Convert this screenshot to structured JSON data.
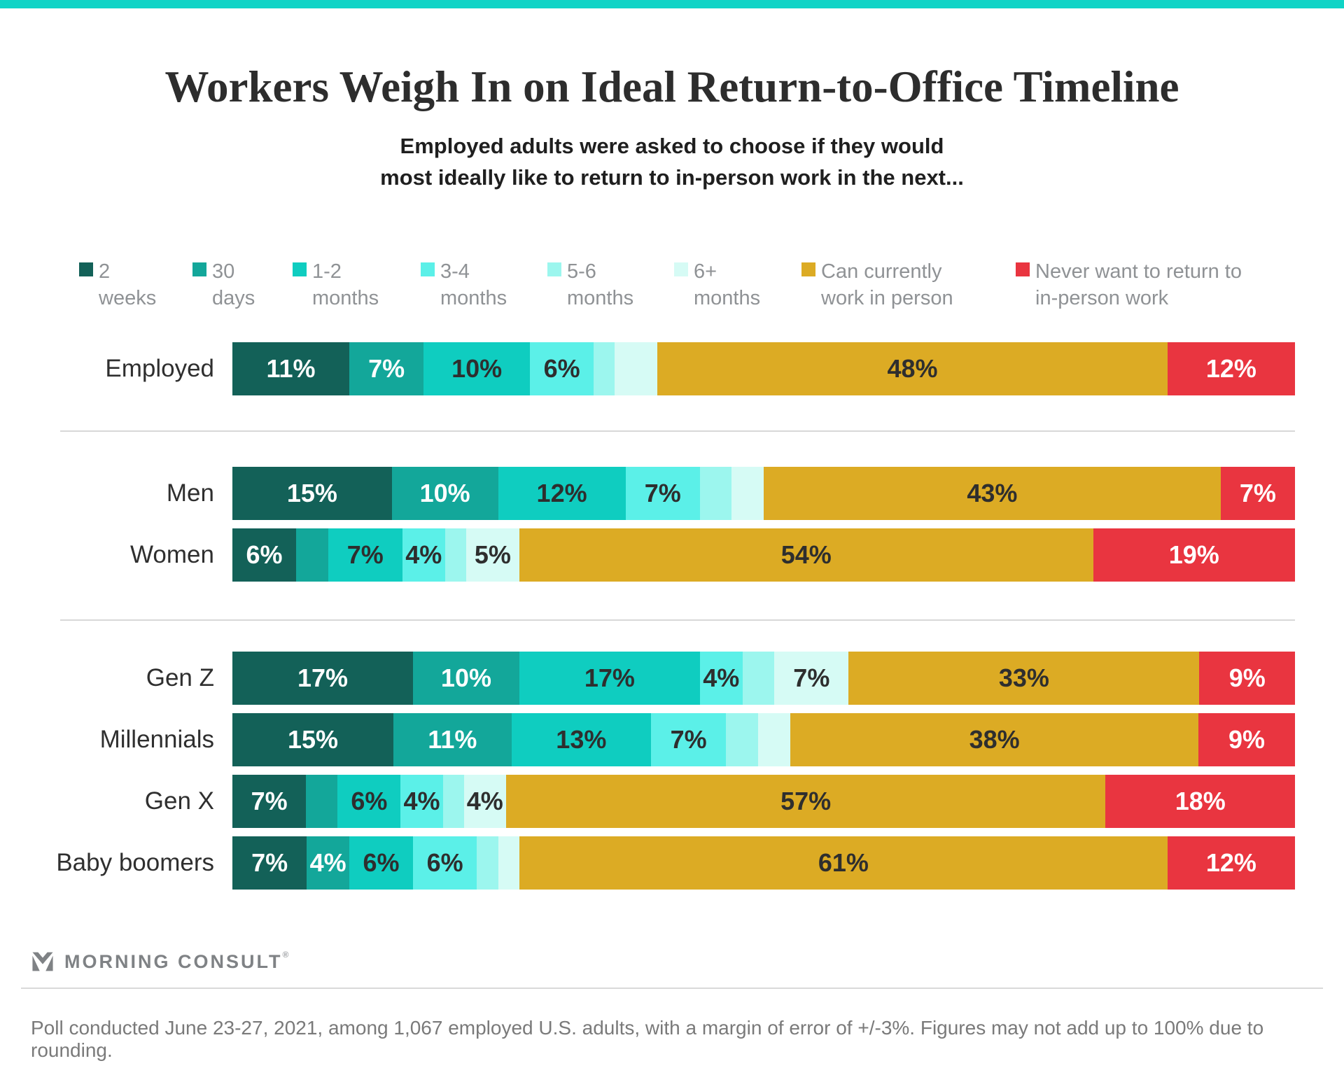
{
  "header": {
    "title": "Workers Weigh In on Ideal Return-to-Office Timeline",
    "subtitle_lines": [
      "Employed adults were asked to choose if they would",
      "most ideally like to return to in-person work in the next..."
    ]
  },
  "colors": {
    "topbar": "#10d4c6",
    "divider": "#d8d8d8",
    "legend_text": "#8f9295",
    "segment_palette": [
      "#136158",
      "#13a79a",
      "#0fcdc0",
      "#5bf0e8",
      "#9cf6ee",
      "#d6fbf5",
      "#dcab24",
      "#e93540"
    ],
    "label_on_dark": "#ffffff",
    "label_on_light": "#2e2e2e"
  },
  "chart_data": {
    "type": "bar",
    "orientation": "horizontal-stacked",
    "unit": "%",
    "xlim": [
      0,
      100
    ],
    "legend_position": "top",
    "grid": false,
    "categories": [
      "2 weeks",
      "30 days",
      "1-2 months",
      "3-4 months",
      "5-6 months",
      "6+ months",
      "Can currently work in person",
      "Never want to return to in-person work"
    ],
    "light_text_segment_indexes": [
      0,
      1,
      7
    ],
    "rows": [
      {
        "label": "Employed",
        "group": 1,
        "values": [
          11,
          7,
          10,
          6,
          2,
          4,
          48,
          12
        ],
        "display_labels": [
          "11%",
          "7%",
          "10%",
          "6%",
          "",
          "",
          "48%",
          "12%"
        ]
      },
      {
        "label": "Men",
        "group": 2,
        "values": [
          15,
          10,
          12,
          7,
          3,
          3,
          43,
          7
        ],
        "display_labels": [
          "15%",
          "10%",
          "12%",
          "7%",
          "",
          "",
          "43%",
          "7%"
        ]
      },
      {
        "label": "Women",
        "group": 2,
        "values": [
          6,
          3,
          7,
          4,
          2,
          5,
          54,
          19
        ],
        "display_labels": [
          "6%",
          "",
          "7%",
          "4%",
          "",
          "5%",
          "54%",
          "19%"
        ]
      },
      {
        "label": "Gen Z",
        "group": 3,
        "values": [
          17,
          10,
          17,
          4,
          3,
          7,
          33,
          9
        ],
        "display_labels": [
          "17%",
          "10%",
          "17%",
          "4%",
          "",
          "7%",
          "33%",
          "9%"
        ]
      },
      {
        "label": "Millennials",
        "group": 3,
        "values": [
          15,
          11,
          13,
          7,
          3,
          3,
          38,
          9
        ],
        "display_labels": [
          "15%",
          "11%",
          "13%",
          "7%",
          "",
          "",
          "38%",
          "9%"
        ]
      },
      {
        "label": "Gen X",
        "group": 3,
        "values": [
          7,
          3,
          6,
          4,
          2,
          4,
          57,
          18
        ],
        "display_labels": [
          "7%",
          "",
          "6%",
          "4%",
          "",
          "4%",
          "57%",
          "18%"
        ]
      },
      {
        "label": "Baby boomers",
        "group": 3,
        "values": [
          7,
          4,
          6,
          6,
          2,
          2,
          61,
          12
        ],
        "display_labels": [
          "7%",
          "4%",
          "6%",
          "6%",
          "",
          "",
          "61%",
          "12%"
        ]
      }
    ]
  },
  "branding": {
    "logo_text": "MORNING CONSULT",
    "logo_mark": "®"
  },
  "footer": {
    "note": "Poll conducted June 23-27, 2021, among 1,067 employed U.S. adults, with a margin of error of +/-3%. Figures may not add up to 100% due to rounding."
  }
}
